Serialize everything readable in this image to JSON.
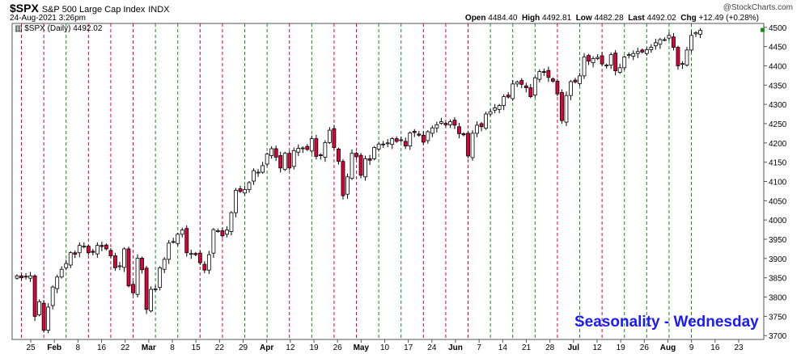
{
  "header": {
    "symbol": "$SPX",
    "name": "S&P 500 Large Cap Index",
    "exchange": "INDX",
    "timestamp": "24-Aug-2021 3:26pm",
    "brand": "@StockCharts.com",
    "open_label": "Open",
    "open": "4484.40",
    "high_label": "High",
    "high": "4492.81",
    "low_label": "Low",
    "low": "4482.28",
    "last_label": "Last",
    "last": "4492.02",
    "chg_label": "Chg",
    "chg": "+12.49 (+0.28%)",
    "legend": "$SPX (Daily) 4492.02"
  },
  "watermark": "Seasonality - Wednesday",
  "chart_data": {
    "type": "candlestick",
    "title": "$SPX S&P 500 Large Cap Index",
    "ylim": [
      3690,
      4510
    ],
    "yticks": [
      3700,
      3750,
      3800,
      3850,
      3900,
      3950,
      4000,
      4050,
      4100,
      4150,
      4200,
      4250,
      4300,
      4350,
      4400,
      4450,
      4500
    ],
    "xtick_labels": [
      "25",
      "Feb",
      "8",
      "16",
      "22",
      "Mar",
      "8",
      "15",
      "22",
      "29",
      "Apr",
      "12",
      "19",
      "26",
      "May",
      "10",
      "17",
      "24",
      "Jun",
      "7",
      "14",
      "21",
      "28",
      "Jul",
      "12",
      "19",
      "26",
      "Aug",
      "9",
      "16",
      "23"
    ],
    "grid": false,
    "up_color": "#ffffff",
    "down_color": "#e0003c",
    "green_line_color": "#1a8a1a",
    "red_line_color": "#e0003c",
    "closes": [
      3855,
      3850,
      3853,
      3855,
      3750,
      3788,
      3714,
      3774,
      3826,
      3852,
      3872,
      3887,
      3915,
      3911,
      3934,
      3932,
      3915,
      3916,
      3934,
      3931,
      3925,
      3907,
      3876,
      3881,
      3925,
      3829,
      3811,
      3901,
      3871,
      3768,
      3820,
      3821,
      3876,
      3898,
      3940,
      3943,
      3963,
      3974,
      3915,
      3913,
      3910,
      3889,
      3870,
      3910,
      3975,
      3972,
      3959,
      3974,
      4019,
      4077,
      4074,
      4079,
      4097,
      4128,
      4124,
      4141,
      4171,
      4185,
      4163,
      4135,
      4173,
      4135,
      4180,
      4186,
      4187,
      4183,
      4211,
      4165,
      4167,
      4201,
      4233,
      4188,
      4152,
      4063,
      4112,
      4173,
      4164,
      4116,
      4159,
      4155,
      4188,
      4197,
      4195,
      4200,
      4211,
      4204,
      4208,
      4192,
      4226,
      4227,
      4220,
      4202,
      4229,
      4239,
      4247,
      4255,
      4247,
      4255,
      4246,
      4224,
      4221,
      4166,
      4225,
      4246,
      4242,
      4275,
      4281,
      4291,
      4297,
      4320,
      4319,
      4353,
      4358,
      4352,
      4343,
      4320,
      4369,
      4385,
      4384,
      4370,
      4360,
      4327,
      4258,
      4323,
      4359,
      4358,
      4374,
      4423,
      4412,
      4419,
      4422,
      4405,
      4402,
      4429,
      4387,
      4395,
      4423,
      4429,
      4432,
      4437,
      4436,
      4442,
      4448,
      4460,
      4468,
      4468,
      4479,
      4448,
      4400,
      4406,
      4441,
      4479,
      4486,
      4492
    ],
    "ohlc_note": "Daily OHLC for Jan 25 - Aug 24, 2021; white = up day, red = down day. Dashed vertical lines mark each Wednesday (green = up, red = down)."
  }
}
